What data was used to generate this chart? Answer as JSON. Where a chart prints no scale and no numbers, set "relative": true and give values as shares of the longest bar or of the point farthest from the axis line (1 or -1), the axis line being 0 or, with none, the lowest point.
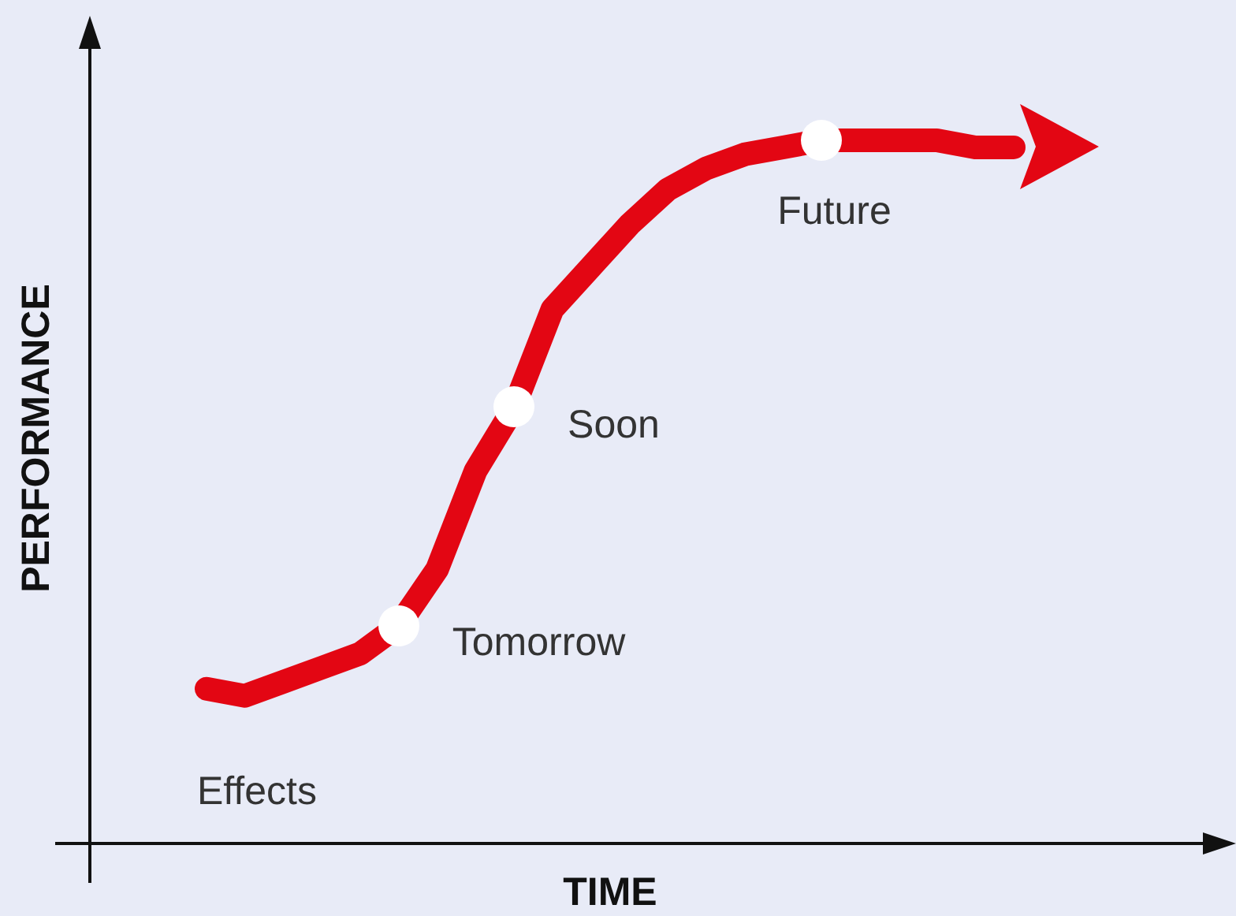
{
  "chart_data": {
    "type": "line",
    "relative": true,
    "xlabel": "TIME",
    "ylabel": "PERFORMANCE",
    "categories": [
      null,
      null,
      null,
      null,
      null,
      null,
      null,
      null,
      null,
      null,
      null,
      null,
      null,
      null,
      null,
      null,
      null,
      null,
      null,
      null,
      null,
      null
    ],
    "series": [
      {
        "color": "#e30613",
        "values": [
          0.22,
          0.21,
          0.23,
          0.25,
          0.27,
          0.31,
          0.39,
          0.53,
          0.62,
          0.76,
          0.82,
          0.88,
          0.93,
          0.96,
          0.98,
          0.99,
          1,
          1,
          1,
          1,
          0.99,
          0.99
        ]
      }
    ],
    "line_style": "solid",
    "grid": false,
    "legend": false,
    "tick_labels": false,
    "annotations": [
      "Tomorrow",
      "Soon",
      "Future",
      "Effects"
    ]
  }
}
